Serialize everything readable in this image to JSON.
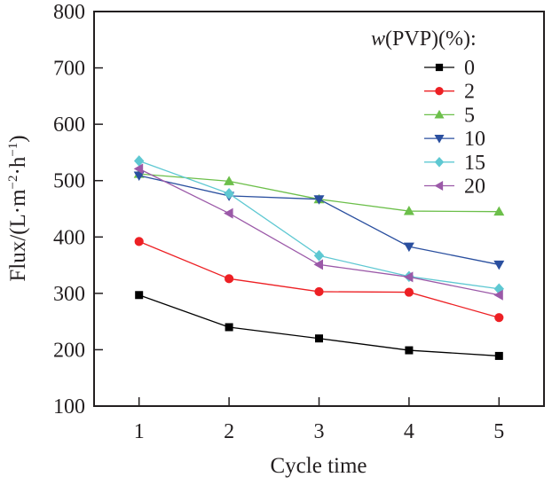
{
  "chart_data": {
    "type": "line",
    "title": "",
    "xlabel": "Cycle time",
    "ylabel": "Flux/(L·m⁻²·h⁻¹)",
    "ylabel_parts": {
      "base": "Flux/(L·m",
      "exp1": "−2",
      "mid": "·h",
      "exp2": "−1",
      "end": ")"
    },
    "x": [
      1,
      2,
      3,
      4,
      5
    ],
    "x_ticks": [
      "1",
      "2",
      "3",
      "4",
      "5"
    ],
    "xlim": [
      0.5,
      5.5
    ],
    "ylim": [
      100,
      800
    ],
    "y_ticks": [
      100,
      200,
      300,
      400,
      500,
      600,
      700,
      800
    ],
    "grid": false,
    "legend": {
      "title_italic": "w",
      "title_rest": "(PVP)(%):",
      "placement": "top-right"
    },
    "series": [
      {
        "name": "0",
        "color": "#000000",
        "marker": "square",
        "values": [
          297,
          240,
          220,
          199,
          189
        ]
      },
      {
        "name": "2",
        "color": "#ed2024",
        "marker": "circle",
        "values": [
          392,
          326,
          303,
          302,
          257
        ]
      },
      {
        "name": "5",
        "color": "#6cbf4a",
        "marker": "triangle-up",
        "values": [
          512,
          499,
          467,
          446,
          445
        ]
      },
      {
        "name": "10",
        "color": "#2a4f9f",
        "marker": "triangle-down",
        "values": [
          509,
          473,
          467,
          383,
          351
        ]
      },
      {
        "name": "15",
        "color": "#5ec8d2",
        "marker": "diamond",
        "values": [
          535,
          477,
          367,
          330,
          308
        ]
      },
      {
        "name": "20",
        "color": "#9b59a8",
        "marker": "triangle-left",
        "values": [
          521,
          442,
          351,
          329,
          297
        ]
      }
    ]
  }
}
